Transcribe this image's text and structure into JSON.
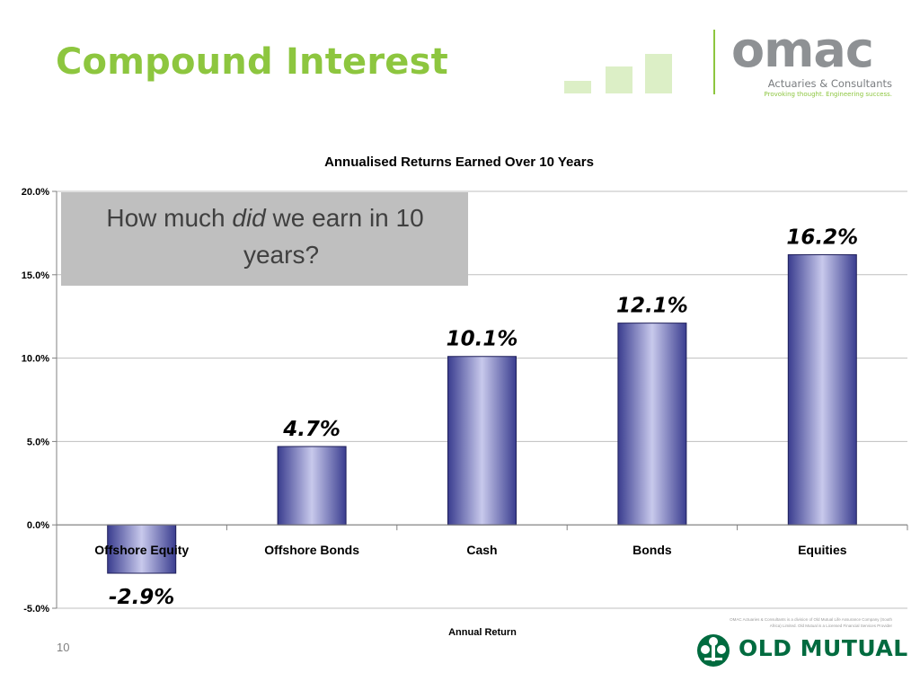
{
  "slide": {
    "title": "Compound Interest",
    "page_number": "10"
  },
  "logo": {
    "brand_prefix": "om",
    "brand_suffix": "ac",
    "tagline": "Actuaries & Consultants",
    "slogan": "Provoking thought. Engineering success.",
    "accent_color": "#8dc63f"
  },
  "footer": {
    "fine_print": "OMAC Actuaries & Consultants is a division of Old Mutual Life Assurance Company (South Africa) Limited. Old Mutual is a Licensed Financial Services Provider",
    "brand": "OLD MUTUAL",
    "brand_color": "#006b3f"
  },
  "callout": {
    "text_before": "How much ",
    "text_emphasis": "did",
    "text_after": " we earn in 10 years?"
  },
  "chart_data": {
    "type": "bar",
    "title": "Annualised Returns Earned Over 10 Years",
    "xlabel": "Annual Return",
    "ylabel": "",
    "categories": [
      "Offshore Equity",
      "Offshore Bonds",
      "Cash",
      "Bonds",
      "Equities"
    ],
    "values": [
      -2.9,
      4.7,
      10.1,
      12.1,
      16.2
    ],
    "data_labels": [
      "-2.9%",
      "4.7%",
      "10.1%",
      "12.1%",
      "16.2%"
    ],
    "ylim": [
      -5,
      20
    ],
    "yticks": [
      20,
      15,
      10,
      5,
      0,
      -5
    ],
    "ytick_labels": [
      "20.0%",
      "15.0%",
      "10.0%",
      "5.0%",
      "0.0%",
      "-5.0%"
    ],
    "grid": true,
    "legend": "none",
    "bar_color": "#5a5fa8"
  }
}
